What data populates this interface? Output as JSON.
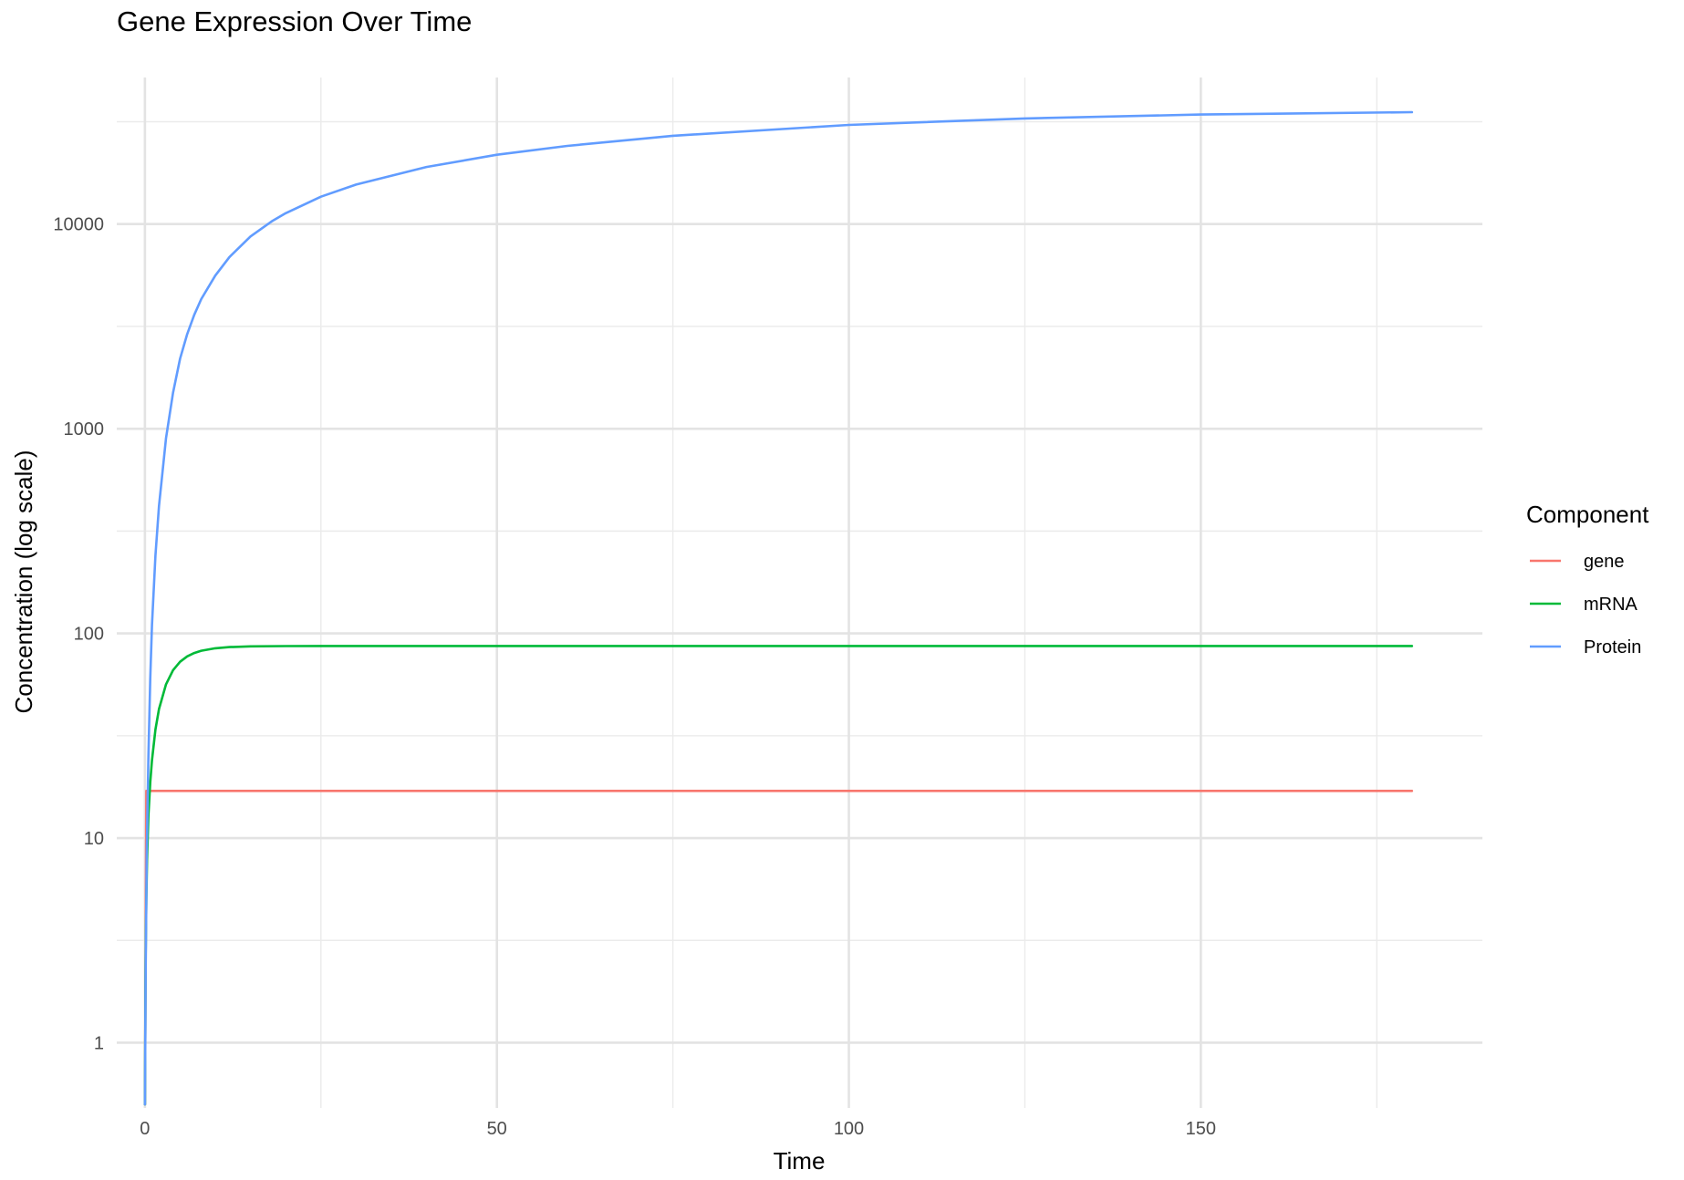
{
  "chart_data": {
    "type": "line",
    "title": "Gene Expression Over Time",
    "xlabel": "Time",
    "ylabel": "Concentration (log scale)",
    "x_scale": "linear",
    "y_scale": "log10",
    "xlim": [
      -4,
      190
    ],
    "ylim": [
      0.48,
      52000
    ],
    "x_ticks": [
      0,
      50,
      100,
      150
    ],
    "x_tick_labels": [
      "0",
      "50",
      "100",
      "150"
    ],
    "x_minor_ticks": [
      25,
      75,
      125,
      175
    ],
    "y_ticks": [
      1,
      10,
      100,
      1000,
      10000
    ],
    "y_tick_labels": [
      "1",
      "10",
      "100",
      "1000",
      "10000"
    ],
    "y_minor_ticks": [
      3.162,
      31.62,
      316.2,
      3162,
      31620
    ],
    "grid": true,
    "legend": {
      "title": "Component",
      "position": "right",
      "entries": [
        "gene",
        "mRNA",
        "Protein"
      ]
    },
    "series": [
      {
        "name": "gene",
        "color": "#F8766D",
        "x": [
          0,
          0.2,
          0.5,
          1,
          180
        ],
        "y": [
          0.5,
          17,
          17,
          17,
          17
        ]
      },
      {
        "name": "mRNA",
        "color": "#00BA38",
        "x": [
          0,
          0.1,
          0.2,
          0.3,
          0.5,
          0.75,
          1,
          1.5,
          2,
          3,
          4,
          5,
          6,
          7,
          8,
          10,
          12,
          15,
          20,
          25,
          30,
          50,
          100,
          150,
          180
        ],
        "y": [
          0.5,
          2.5,
          5,
          7.8,
          12.9,
          18.7,
          24,
          33.9,
          42.7,
          56.4,
          66.1,
          72.7,
          77.2,
          80.2,
          82.3,
          84.6,
          85.7,
          86.4,
          86.7,
          86.8,
          86.8,
          86.8,
          86.8,
          86.8,
          86.8
        ]
      },
      {
        "name": "Protein",
        "color": "#619CFF",
        "x": [
          0,
          0.1,
          0.25,
          0.5,
          0.75,
          1,
          1.5,
          2,
          3,
          4,
          5,
          6,
          7,
          8,
          10,
          12,
          15,
          18,
          20,
          25,
          30,
          40,
          50,
          60,
          75,
          100,
          125,
          150,
          180
        ],
        "y": [
          0.5,
          2,
          8,
          25,
          60,
          110,
          240,
          420,
          900,
          1500,
          2200,
          2900,
          3600,
          4300,
          5600,
          6900,
          8700,
          10300,
          11300,
          13600,
          15600,
          19000,
          21800,
          24100,
          27000,
          30500,
          32800,
          34300,
          35200
        ]
      }
    ]
  }
}
